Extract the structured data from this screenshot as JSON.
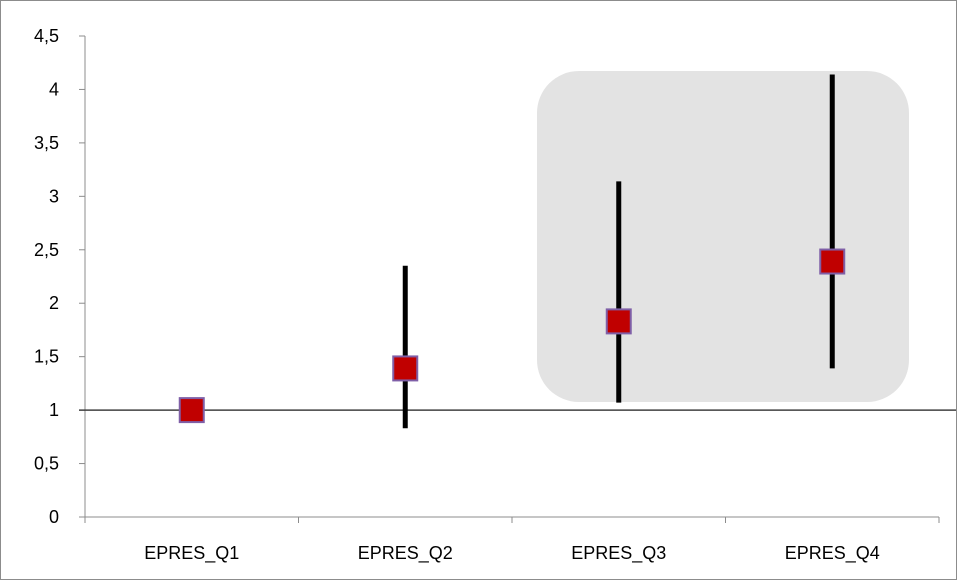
{
  "chart_data": {
    "type": "scatter",
    "title": "",
    "xlabel": "",
    "ylabel": "",
    "categories": [
      "EPRES_Q1",
      "EPRES_Q2",
      "EPRES_Q3",
      "EPRES_Q4"
    ],
    "series": [
      {
        "values": [
          1.0,
          1.39,
          1.83,
          2.39
        ],
        "lower": [
          1.0,
          0.83,
          1.07,
          1.39
        ],
        "upper": [
          1.0,
          2.35,
          3.14,
          4.14
        ]
      }
    ],
    "reference_line": 1,
    "ylim": [
      0,
      4.5
    ],
    "yticks": [
      "0",
      "0,5",
      "1",
      "1,5",
      "2",
      "2,5",
      "3",
      "3,5",
      "4",
      "4,5"
    ],
    "grid": false,
    "legend": "none",
    "highlight_categories": [
      "EPRES_Q3",
      "EPRES_Q4"
    ],
    "colors": {
      "marker_fill": "#c00000",
      "marker_edge": "#7f5fa7",
      "whisker": "#000000",
      "highlight": "#e3e3e3",
      "axis": "#8c8c8c",
      "reference_line": "#404040"
    }
  }
}
